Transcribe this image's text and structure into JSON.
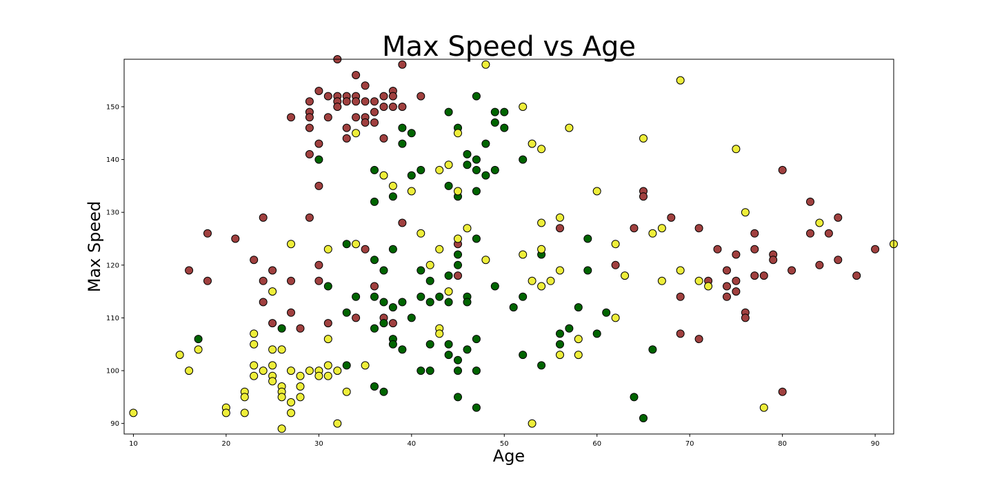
{
  "chart_data": {
    "type": "scatter",
    "title": "Max Speed vs Age",
    "xlabel": "Age",
    "ylabel": "Max Speed",
    "xlim": [
      9,
      92
    ],
    "ylim": [
      88,
      159
    ],
    "xticks": [
      10,
      20,
      30,
      40,
      50,
      60,
      70,
      80,
      90
    ],
    "yticks": [
      90,
      100,
      110,
      120,
      130,
      140,
      150
    ],
    "grid": false,
    "legend": "none",
    "colors": {
      "red": "#a0403f",
      "green": "#006400",
      "yellow": "#eeee3a"
    },
    "series": [
      {
        "color": "red",
        "points": [
          [
            32,
            159
          ],
          [
            39,
            158
          ],
          [
            34,
            156
          ],
          [
            35,
            154
          ],
          [
            30,
            153
          ],
          [
            38,
            153
          ],
          [
            31,
            152
          ],
          [
            32,
            152
          ],
          [
            33,
            152
          ],
          [
            34,
            152
          ],
          [
            37,
            152
          ],
          [
            38,
            152
          ],
          [
            41,
            152
          ],
          [
            29,
            151
          ],
          [
            32,
            151
          ],
          [
            33,
            151
          ],
          [
            34,
            151
          ],
          [
            35,
            151
          ],
          [
            36,
            151
          ],
          [
            32,
            150
          ],
          [
            37,
            150
          ],
          [
            38,
            150
          ],
          [
            39,
            150
          ],
          [
            29,
            149
          ],
          [
            36,
            149
          ],
          [
            27,
            148
          ],
          [
            29,
            148
          ],
          [
            31,
            148
          ],
          [
            34,
            148
          ],
          [
            35,
            148
          ],
          [
            35,
            147
          ],
          [
            36,
            147
          ],
          [
            29,
            146
          ],
          [
            33,
            146
          ],
          [
            33,
            144
          ],
          [
            37,
            144
          ],
          [
            30,
            143
          ],
          [
            29,
            141
          ],
          [
            80,
            138
          ],
          [
            30,
            135
          ],
          [
            65,
            134
          ],
          [
            65,
            133
          ],
          [
            83,
            132
          ],
          [
            24,
            129
          ],
          [
            29,
            129
          ],
          [
            68,
            129
          ],
          [
            86,
            129
          ],
          [
            39,
            128
          ],
          [
            56,
            127
          ],
          [
            64,
            127
          ],
          [
            71,
            127
          ],
          [
            18,
            126
          ],
          [
            77,
            126
          ],
          [
            83,
            126
          ],
          [
            85,
            126
          ],
          [
            21,
            125
          ],
          [
            45,
            124
          ],
          [
            35,
            123
          ],
          [
            73,
            123
          ],
          [
            77,
            123
          ],
          [
            90,
            123
          ],
          [
            75,
            122
          ],
          [
            79,
            122
          ],
          [
            23,
            121
          ],
          [
            79,
            121
          ],
          [
            86,
            121
          ],
          [
            30,
            120
          ],
          [
            62,
            120
          ],
          [
            84,
            120
          ],
          [
            16,
            119
          ],
          [
            25,
            119
          ],
          [
            74,
            119
          ],
          [
            81,
            119
          ],
          [
            45,
            118
          ],
          [
            77,
            118
          ],
          [
            78,
            118
          ],
          [
            88,
            118
          ],
          [
            18,
            117
          ],
          [
            24,
            117
          ],
          [
            27,
            117
          ],
          [
            30,
            117
          ],
          [
            72,
            117
          ],
          [
            75,
            117
          ],
          [
            36,
            116
          ],
          [
            74,
            116
          ],
          [
            75,
            115
          ],
          [
            69,
            114
          ],
          [
            74,
            114
          ],
          [
            24,
            113
          ],
          [
            27,
            111
          ],
          [
            76,
            111
          ],
          [
            34,
            110
          ],
          [
            37,
            110
          ],
          [
            76,
            110
          ],
          [
            25,
            109
          ],
          [
            31,
            109
          ],
          [
            38,
            109
          ],
          [
            28,
            108
          ],
          [
            69,
            107
          ],
          [
            71,
            106
          ],
          [
            80,
            96
          ]
        ]
      },
      {
        "color": "green",
        "points": [
          [
            47,
            152
          ],
          [
            44,
            149
          ],
          [
            49,
            149
          ],
          [
            50,
            149
          ],
          [
            49,
            147
          ],
          [
            39,
            146
          ],
          [
            45,
            146
          ],
          [
            50,
            146
          ],
          [
            40,
            145
          ],
          [
            39,
            143
          ],
          [
            48,
            143
          ],
          [
            30,
            140
          ],
          [
            47,
            140
          ],
          [
            52,
            140
          ],
          [
            46,
            141
          ],
          [
            46,
            139
          ],
          [
            36,
            138
          ],
          [
            41,
            138
          ],
          [
            47,
            138
          ],
          [
            49,
            138
          ],
          [
            40,
            137
          ],
          [
            48,
            137
          ],
          [
            44,
            135
          ],
          [
            47,
            134
          ],
          [
            38,
            133
          ],
          [
            45,
            133
          ],
          [
            36,
            132
          ],
          [
            59,
            125
          ],
          [
            47,
            125
          ],
          [
            33,
            124
          ],
          [
            38,
            123
          ],
          [
            45,
            122
          ],
          [
            54,
            122
          ],
          [
            36,
            121
          ],
          [
            45,
            120
          ],
          [
            37,
            119
          ],
          [
            41,
            119
          ],
          [
            59,
            119
          ],
          [
            44,
            118
          ],
          [
            42,
            117
          ],
          [
            31,
            116
          ],
          [
            49,
            116
          ],
          [
            34,
            114
          ],
          [
            36,
            114
          ],
          [
            41,
            114
          ],
          [
            43,
            114
          ],
          [
            46,
            114
          ],
          [
            52,
            114
          ],
          [
            37,
            113
          ],
          [
            39,
            113
          ],
          [
            42,
            113
          ],
          [
            44,
            113
          ],
          [
            46,
            113
          ],
          [
            38,
            112
          ],
          [
            51,
            112
          ],
          [
            58,
            112
          ],
          [
            33,
            111
          ],
          [
            61,
            111
          ],
          [
            40,
            110
          ],
          [
            37,
            109
          ],
          [
            26,
            108
          ],
          [
            36,
            108
          ],
          [
            57,
            108
          ],
          [
            56,
            107
          ],
          [
            60,
            107
          ],
          [
            17,
            106
          ],
          [
            38,
            106
          ],
          [
            47,
            106
          ],
          [
            38,
            105
          ],
          [
            42,
            105
          ],
          [
            44,
            105
          ],
          [
            56,
            105
          ],
          [
            39,
            104
          ],
          [
            46,
            104
          ],
          [
            66,
            104
          ],
          [
            44,
            103
          ],
          [
            52,
            103
          ],
          [
            45,
            102
          ],
          [
            33,
            101
          ],
          [
            54,
            101
          ],
          [
            41,
            100
          ],
          [
            42,
            100
          ],
          [
            45,
            100
          ],
          [
            47,
            100
          ],
          [
            36,
            97
          ],
          [
            37,
            96
          ],
          [
            45,
            95
          ],
          [
            64,
            95
          ],
          [
            47,
            93
          ],
          [
            65,
            91
          ]
        ]
      },
      {
        "color": "yellow",
        "points": [
          [
            48,
            158
          ],
          [
            69,
            155
          ],
          [
            52,
            150
          ],
          [
            57,
            146
          ],
          [
            34,
            145
          ],
          [
            45,
            145
          ],
          [
            65,
            144
          ],
          [
            53,
            143
          ],
          [
            54,
            142
          ],
          [
            75,
            142
          ],
          [
            44,
            139
          ],
          [
            43,
            138
          ],
          [
            37,
            137
          ],
          [
            38,
            135
          ],
          [
            40,
            134
          ],
          [
            45,
            134
          ],
          [
            60,
            134
          ],
          [
            76,
            130
          ],
          [
            56,
            129
          ],
          [
            54,
            128
          ],
          [
            84,
            128
          ],
          [
            46,
            127
          ],
          [
            67,
            127
          ],
          [
            41,
            126
          ],
          [
            66,
            126
          ],
          [
            45,
            125
          ],
          [
            27,
            124
          ],
          [
            34,
            124
          ],
          [
            62,
            124
          ],
          [
            92,
            124
          ],
          [
            31,
            123
          ],
          [
            43,
            123
          ],
          [
            54,
            123
          ],
          [
            52,
            122
          ],
          [
            48,
            121
          ],
          [
            42,
            120
          ],
          [
            56,
            119
          ],
          [
            69,
            119
          ],
          [
            63,
            118
          ],
          [
            53,
            117
          ],
          [
            55,
            117
          ],
          [
            67,
            117
          ],
          [
            71,
            117
          ],
          [
            54,
            116
          ],
          [
            72,
            116
          ],
          [
            25,
            115
          ],
          [
            44,
            115
          ],
          [
            62,
            110
          ],
          [
            43,
            108
          ],
          [
            23,
            107
          ],
          [
            43,
            107
          ],
          [
            58,
            106
          ],
          [
            31,
            106
          ],
          [
            23,
            105
          ],
          [
            17,
            104
          ],
          [
            25,
            104
          ],
          [
            26,
            104
          ],
          [
            15,
            103
          ],
          [
            56,
            103
          ],
          [
            58,
            103
          ],
          [
            23,
            101
          ],
          [
            25,
            101
          ],
          [
            31,
            101
          ],
          [
            35,
            101
          ],
          [
            16,
            100
          ],
          [
            24,
            100
          ],
          [
            27,
            100
          ],
          [
            29,
            100
          ],
          [
            30,
            100
          ],
          [
            32,
            100
          ],
          [
            23,
            99
          ],
          [
            25,
            99
          ],
          [
            28,
            99
          ],
          [
            30,
            99
          ],
          [
            31,
            99
          ],
          [
            25,
            98
          ],
          [
            26,
            97
          ],
          [
            28,
            97
          ],
          [
            22,
            96
          ],
          [
            26,
            96
          ],
          [
            33,
            96
          ],
          [
            22,
            95
          ],
          [
            26,
            95
          ],
          [
            28,
            95
          ],
          [
            27,
            94
          ],
          [
            20,
            93
          ],
          [
            78,
            93
          ],
          [
            10,
            92
          ],
          [
            20,
            92
          ],
          [
            22,
            92
          ],
          [
            27,
            92
          ],
          [
            32,
            90
          ],
          [
            53,
            90
          ],
          [
            26,
            89
          ]
        ]
      }
    ]
  }
}
